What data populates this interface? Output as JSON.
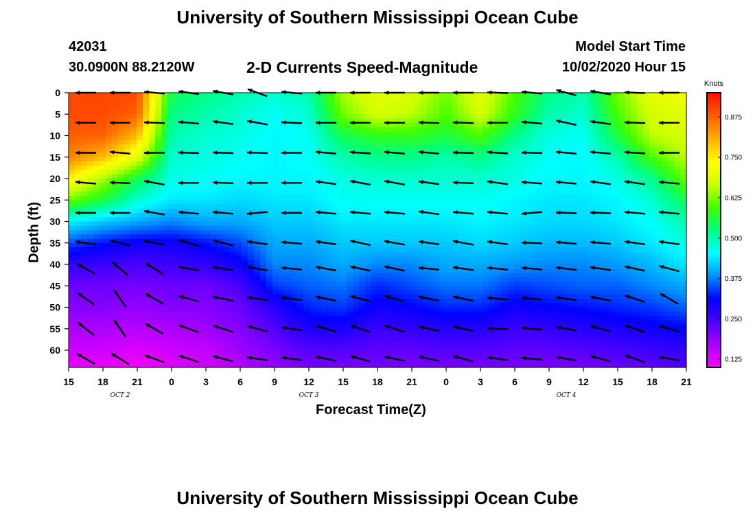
{
  "header": {
    "title_top": "University of Southern Mississippi Ocean Cube",
    "title_bottom": "University of Southern Mississippi Ocean Cube",
    "station_id": "42031",
    "coords": "30.0900N 88.2120W",
    "chart_title": "2-D Currents Speed-Magnitude",
    "model_start_label": "Model Start Time",
    "model_start_value": "10/02/2020 Hour 15"
  },
  "colors": {
    "colormap": [
      "#ff00ff",
      "#aa00ff",
      "#5000ff",
      "#0000ff",
      "#0090ff",
      "#00ffff",
      "#00ff80",
      "#40ff00",
      "#ccff00",
      "#ffff00",
      "#ffb000",
      "#ff6000",
      "#ff1000"
    ]
  },
  "chart_data": {
    "type": "heatmap",
    "title": "2-D Currents Speed-Magnitude",
    "xlabel": "Forecast Time(Z)",
    "ylabel": "Depth (ft)",
    "colorbar_label": "Knots",
    "x_tick_labels": [
      "15",
      "18",
      "21",
      "0",
      "3",
      "6",
      "9",
      "12",
      "15",
      "18",
      "21",
      "0",
      "3",
      "6",
      "9",
      "12",
      "15",
      "18",
      "21"
    ],
    "x_hours": [
      0,
      3,
      6,
      9,
      12,
      15,
      18,
      21,
      24,
      27,
      30,
      33,
      36,
      39,
      42,
      45,
      48,
      51,
      54
    ],
    "day_labels": [
      {
        "text": "OCT 2",
        "hour": 4.5
      },
      {
        "text": "OCT 3",
        "hour": 21
      },
      {
        "text": "OCT 4",
        "hour": 43.5
      }
    ],
    "xlim": [
      0,
      54
    ],
    "y_ticks": [
      0,
      5,
      10,
      15,
      20,
      25,
      30,
      35,
      40,
      45,
      50,
      55,
      60
    ],
    "ylim": [
      0,
      64
    ],
    "colorbar_ticks": [
      0.125,
      0.25,
      0.375,
      0.5,
      0.625,
      0.75,
      0.875
    ],
    "colorbar_tick_labels": [
      "0.125",
      "0.250",
      "0.375",
      "0.500",
      "0.625",
      "0.750",
      "0.875"
    ],
    "clim": [
      0.1,
      0.95
    ],
    "speed_grid": {
      "hours": [
        0,
        3,
        6,
        9,
        12,
        15,
        18,
        21,
        24,
        27,
        30,
        33,
        36,
        39,
        42,
        45,
        48,
        51,
        54
      ],
      "depths": [
        0,
        5,
        10,
        15,
        20,
        25,
        30,
        35,
        40,
        45,
        50,
        55,
        60,
        64
      ],
      "values": [
        [
          0.9,
          0.9,
          0.9,
          0.55,
          0.52,
          0.5,
          0.48,
          0.5,
          0.65,
          0.7,
          0.68,
          0.62,
          0.7,
          0.6,
          0.52,
          0.5,
          0.62,
          0.7,
          0.72
        ],
        [
          0.9,
          0.9,
          0.88,
          0.52,
          0.5,
          0.48,
          0.46,
          0.48,
          0.62,
          0.68,
          0.66,
          0.6,
          0.68,
          0.58,
          0.5,
          0.48,
          0.6,
          0.68,
          0.7
        ],
        [
          0.88,
          0.88,
          0.8,
          0.5,
          0.48,
          0.47,
          0.45,
          0.46,
          0.55,
          0.58,
          0.58,
          0.56,
          0.6,
          0.52,
          0.47,
          0.46,
          0.56,
          0.66,
          0.68
        ],
        [
          0.85,
          0.8,
          0.7,
          0.48,
          0.47,
          0.46,
          0.45,
          0.46,
          0.5,
          0.52,
          0.52,
          0.5,
          0.52,
          0.48,
          0.46,
          0.45,
          0.5,
          0.6,
          0.66
        ],
        [
          0.75,
          0.65,
          0.55,
          0.47,
          0.46,
          0.45,
          0.45,
          0.45,
          0.47,
          0.48,
          0.48,
          0.48,
          0.48,
          0.47,
          0.45,
          0.45,
          0.47,
          0.52,
          0.62
        ],
        [
          0.62,
          0.56,
          0.48,
          0.44,
          0.44,
          0.43,
          0.44,
          0.44,
          0.46,
          0.46,
          0.46,
          0.46,
          0.46,
          0.45,
          0.44,
          0.44,
          0.45,
          0.48,
          0.55
        ],
        [
          0.45,
          0.42,
          0.4,
          0.38,
          0.4,
          0.4,
          0.42,
          0.42,
          0.44,
          0.44,
          0.44,
          0.44,
          0.45,
          0.44,
          0.43,
          0.43,
          0.44,
          0.46,
          0.5
        ],
        [
          0.35,
          0.32,
          0.3,
          0.3,
          0.32,
          0.35,
          0.4,
          0.4,
          0.42,
          0.42,
          0.42,
          0.42,
          0.43,
          0.42,
          0.41,
          0.41,
          0.42,
          0.44,
          0.47
        ],
        [
          0.27,
          0.26,
          0.25,
          0.26,
          0.27,
          0.3,
          0.38,
          0.38,
          0.4,
          0.38,
          0.38,
          0.4,
          0.4,
          0.39,
          0.38,
          0.38,
          0.39,
          0.41,
          0.44
        ],
        [
          0.22,
          0.22,
          0.21,
          0.22,
          0.22,
          0.25,
          0.34,
          0.36,
          0.37,
          0.33,
          0.35,
          0.37,
          0.37,
          0.34,
          0.35,
          0.36,
          0.36,
          0.38,
          0.4
        ],
        [
          0.2,
          0.2,
          0.19,
          0.2,
          0.2,
          0.22,
          0.28,
          0.33,
          0.34,
          0.3,
          0.31,
          0.33,
          0.33,
          0.3,
          0.31,
          0.32,
          0.33,
          0.34,
          0.36
        ],
        [
          0.17,
          0.17,
          0.16,
          0.17,
          0.18,
          0.2,
          0.24,
          0.29,
          0.29,
          0.26,
          0.27,
          0.28,
          0.28,
          0.26,
          0.27,
          0.28,
          0.29,
          0.3,
          0.31
        ],
        [
          0.14,
          0.14,
          0.13,
          0.14,
          0.15,
          0.18,
          0.21,
          0.24,
          0.24,
          0.23,
          0.23,
          0.24,
          0.24,
          0.23,
          0.23,
          0.24,
          0.25,
          0.26,
          0.27
        ],
        [
          0.12,
          0.12,
          0.11,
          0.13,
          0.14,
          0.16,
          0.19,
          0.21,
          0.21,
          0.21,
          0.21,
          0.21,
          0.21,
          0.21,
          0.21,
          0.21,
          0.22,
          0.23,
          0.24
        ]
      ]
    },
    "vectors": {
      "hours": [
        1.5,
        4.5,
        7.5,
        10.5,
        13.5,
        16.5,
        19.5,
        22.5,
        25.5,
        28.5,
        31.5,
        34.5,
        37.5,
        40.5,
        43.5,
        46.5,
        49.5,
        52.5
      ],
      "depths": [
        0,
        7,
        14,
        21,
        28,
        35,
        41,
        48,
        55,
        62
      ],
      "angles_deg": [
        [
          180,
          180,
          175,
          172,
          170,
          160,
          175,
          180,
          180,
          180,
          180,
          180,
          178,
          175,
          165,
          170,
          178,
          180
        ],
        [
          180,
          180,
          178,
          175,
          172,
          170,
          177,
          180,
          180,
          180,
          178,
          178,
          180,
          175,
          168,
          172,
          178,
          180
        ],
        [
          180,
          175,
          180,
          178,
          178,
          178,
          180,
          175,
          176,
          175,
          175,
          178,
          176,
          178,
          175,
          175,
          176,
          180
        ],
        [
          175,
          178,
          170,
          180,
          178,
          180,
          180,
          172,
          170,
          170,
          172,
          178,
          172,
          176,
          175,
          172,
          172,
          175
        ],
        [
          180,
          180,
          170,
          175,
          175,
          185,
          180,
          175,
          175,
          175,
          172,
          175,
          175,
          185,
          178,
          178,
          175,
          175
        ],
        [
          172,
          165,
          170,
          162,
          165,
          172,
          175,
          172,
          168,
          170,
          172,
          170,
          172,
          178,
          175,
          175,
          172,
          172
        ],
        [
          150,
          140,
          148,
          170,
          172,
          170,
          175,
          170,
          168,
          168,
          175,
          172,
          175,
          175,
          173,
          172,
          168,
          165
        ],
        [
          145,
          125,
          150,
          165,
          168,
          172,
          172,
          168,
          165,
          165,
          168,
          168,
          175,
          175,
          172,
          168,
          162,
          150
        ],
        [
          142,
          125,
          150,
          160,
          162,
          165,
          172,
          165,
          162,
          162,
          168,
          168,
          178,
          175,
          170,
          165,
          160,
          165
        ],
        [
          150,
          148,
          160,
          162,
          165,
          172,
          172,
          168,
          165,
          168,
          168,
          165,
          172,
          175,
          170,
          165,
          160,
          170
        ]
      ]
    }
  }
}
